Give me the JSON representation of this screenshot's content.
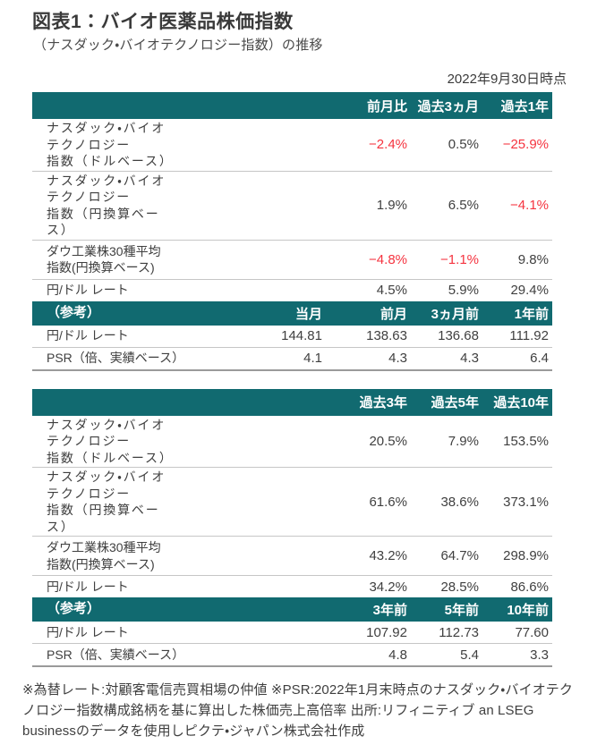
{
  "page": {
    "title": "図表1：バイオ医薬品株価指数",
    "subtitle": "（ナスダック・バイオテクノロジー指数）の推移",
    "as_of_date": "2022年9月30日時点",
    "footnote": "※為替レート:対顧客電信売買相場の仲値  ※PSR:2022年1月末時点のナスダック・バイオテクノロジー指数構成銘柄を基に算出した株価売上高倍率  出所:リフィニティブ an LSEG businessのデータを使用しピクテ・ジャパン株式会社作成"
  },
  "colors": {
    "teal": "#116a70",
    "negative_red": "#f5333f",
    "text": "#3f3f3f"
  },
  "chart_data": [
    {
      "type": "table",
      "title": "短期パフォーマンス",
      "period_headers": [
        "前月比",
        "過去3ヵ月",
        "過去1年"
      ],
      "rows": [
        {
          "label": "ナスダック・バイオ\nテクノロジー\n指数（ドルベース）",
          "values": [
            "−2.4%",
            "0.5%",
            "−25.9%"
          ]
        },
        {
          "label": "ナスダック・バイオ\nテクノロジー\n指数（円換算ベー\nス）",
          "values": [
            "1.9%",
            "6.5%",
            "−4.1%"
          ]
        },
        {
          "label": "ダウ工業株30種平均\n指数(円換算ベース)",
          "values": [
            "−4.8%",
            "−1.1%",
            "9.8%"
          ]
        },
        {
          "label": "円/ドル レート",
          "values": [
            "4.5%",
            "5.9%",
            "29.4%"
          ]
        }
      ],
      "ref_header": {
        "label": "（参考）",
        "cols": [
          "当月",
          "前月",
          "3ヵ月前",
          "1年前"
        ]
      },
      "ref_rows": [
        {
          "label": "円/ドル レート",
          "values": [
            "144.81",
            "138.63",
            "136.68",
            "111.92"
          ]
        },
        {
          "label": "PSR（倍、実績ベース）",
          "values": [
            "4.1",
            "4.3",
            "4.3",
            "6.4"
          ]
        }
      ]
    },
    {
      "type": "table",
      "title": "長期パフォーマンス",
      "period_headers": [
        "過去3年",
        "過去5年",
        "過去10年"
      ],
      "rows": [
        {
          "label": "ナスダック・バイオ\nテクノロジー\n指数（ドルベース）",
          "values": [
            "20.5%",
            "7.9%",
            "153.5%"
          ]
        },
        {
          "label": "ナスダック・バイオ\nテクノロジー\n指数（円換算ベー\nス）",
          "values": [
            "61.6%",
            "38.6%",
            "373.1%"
          ]
        },
        {
          "label": "ダウ工業株30種平均\n指数(円換算ベース)",
          "values": [
            "43.2%",
            "64.7%",
            "298.9%"
          ]
        },
        {
          "label": "円/ドル レート",
          "values": [
            "34.2%",
            "28.5%",
            "86.6%"
          ]
        }
      ],
      "ref_header": {
        "label": "（参考）",
        "cols": [
          "3年前",
          "5年前",
          "10年前"
        ]
      },
      "ref_rows": [
        {
          "label": "円/ドル レート",
          "values": [
            "107.92",
            "112.73",
            "77.60"
          ]
        },
        {
          "label": "PSR（倍、実績ベース）",
          "values": [
            "4.8",
            "5.4",
            "3.3"
          ]
        }
      ]
    }
  ]
}
